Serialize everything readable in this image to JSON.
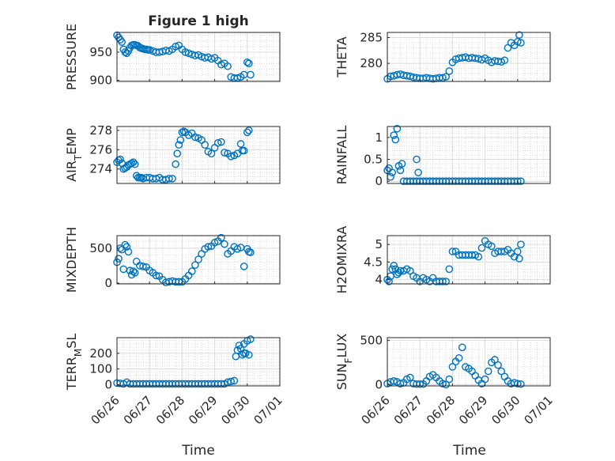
{
  "figure": {
    "title": "Figure 1 high",
    "xlabel": "Time",
    "x_ticks": [
      "06/26",
      "06/27",
      "06/28",
      "06/29",
      "06/30",
      "07/01"
    ],
    "marker_color": "#0072BD"
  },
  "chart_data": [
    {
      "type": "scatter",
      "ylabel": "PRESSURE",
      "title": "Figure 1 high",
      "ylim": [
        898,
        985
      ],
      "yticks": [
        900,
        950
      ],
      "x": [
        0.0,
        0.05,
        0.1,
        0.15,
        0.2,
        0.25,
        0.3,
        0.35,
        0.4,
        0.45,
        0.5,
        0.55,
        0.6,
        0.65,
        0.7,
        0.75,
        0.8,
        0.85,
        0.9,
        0.95,
        1.0,
        1.1,
        1.2,
        1.3,
        1.4,
        1.5,
        1.6,
        1.7,
        1.8,
        1.9,
        2.0,
        2.1,
        2.2,
        2.3,
        2.4,
        2.5,
        2.6,
        2.7,
        2.8,
        2.9,
        3.0,
        3.1,
        3.2,
        3.3,
        3.4,
        3.5,
        3.6,
        3.7,
        3.8,
        3.9,
        4.0,
        4.05,
        4.1
      ],
      "y": [
        980,
        976,
        972,
        968,
        955,
        950,
        948,
        952,
        958,
        962,
        963,
        963,
        962,
        961,
        958,
        957,
        956,
        955,
        955,
        954,
        954,
        952,
        950,
        950,
        951,
        953,
        952,
        955,
        960,
        962,
        955,
        950,
        948,
        946,
        944,
        945,
        942,
        940,
        941,
        938,
        940,
        935,
        928,
        930,
        925,
        906,
        904,
        904,
        906,
        910,
        932,
        930,
        910
      ]
    },
    {
      "type": "scatter",
      "ylabel": "THETA",
      "ylim": [
        276.5,
        286
      ],
      "yticks": [
        280,
        285
      ],
      "x": [
        0.0,
        0.1,
        0.2,
        0.3,
        0.4,
        0.5,
        0.6,
        0.7,
        0.8,
        0.9,
        1.0,
        1.1,
        1.2,
        1.3,
        1.4,
        1.5,
        1.6,
        1.7,
        1.8,
        1.9,
        2.0,
        2.1,
        2.2,
        2.3,
        2.4,
        2.5,
        2.6,
        2.7,
        2.8,
        2.9,
        3.0,
        3.1,
        3.2,
        3.3,
        3.4,
        3.5,
        3.6,
        3.7,
        3.8,
        3.9,
        4.0,
        4.05,
        4.1
      ],
      "y": [
        277.0,
        277.5,
        277.6,
        277.8,
        277.9,
        277.7,
        277.6,
        277.5,
        277.3,
        277.2,
        277.1,
        277.1,
        277.2,
        277.1,
        277.0,
        277.1,
        277.2,
        277.2,
        277.4,
        278.5,
        280.2,
        280.8,
        281.0,
        281.1,
        281.2,
        281.0,
        281.1,
        281.0,
        280.9,
        280.7,
        281.0,
        280.6,
        280.2,
        280.5,
        280.4,
        280.3,
        280.6,
        283.0,
        284.0,
        283.5,
        284.2,
        285.5,
        284.0
      ]
    },
    {
      "type": "scatter",
      "ylabel": "AIR_TEMP",
      "ylim": [
        272.5,
        278.4
      ],
      "yticks": [
        274,
        276,
        278
      ],
      "x": [
        0.0,
        0.05,
        0.1,
        0.15,
        0.2,
        0.25,
        0.3,
        0.35,
        0.4,
        0.45,
        0.5,
        0.55,
        0.6,
        0.65,
        0.7,
        0.75,
        0.8,
        0.9,
        1.0,
        1.1,
        1.2,
        1.3,
        1.4,
        1.5,
        1.6,
        1.7,
        1.8,
        1.85,
        1.9,
        1.95,
        2.0,
        2.05,
        2.1,
        2.2,
        2.3,
        2.4,
        2.5,
        2.6,
        2.7,
        2.8,
        2.9,
        3.0,
        3.1,
        3.2,
        3.3,
        3.4,
        3.5,
        3.6,
        3.7,
        3.8,
        3.85,
        3.9,
        4.0,
        4.05
      ],
      "y": [
        274.7,
        274.9,
        275.0,
        274.6,
        274.0,
        274.1,
        274.2,
        274.4,
        274.5,
        274.6,
        274.7,
        274.5,
        273.3,
        273.1,
        273.1,
        273.1,
        273.0,
        273.1,
        273.1,
        273.0,
        273.0,
        273.1,
        272.9,
        272.9,
        273.0,
        273.0,
        274.5,
        275.6,
        276.5,
        277.0,
        277.8,
        277.9,
        277.8,
        277.5,
        277.7,
        277.3,
        277.2,
        277.0,
        276.5,
        275.8,
        275.6,
        276.2,
        276.7,
        276.8,
        275.7,
        275.6,
        275.3,
        275.4,
        275.6,
        276.6,
        275.9,
        275.9,
        277.8,
        278.0
      ]
    },
    {
      "type": "scatter",
      "ylabel": "RAINFALL",
      "ylim": [
        -0.05,
        1.25
      ],
      "yticks": [
        0,
        0.5,
        1
      ],
      "x": [
        0.0,
        0.05,
        0.1,
        0.15,
        0.2,
        0.25,
        0.3,
        0.35,
        0.4,
        0.45,
        0.5,
        0.6,
        0.7,
        0.8,
        0.9,
        1.0,
        1.1,
        1.2,
        1.3,
        1.4,
        1.5,
        1.6,
        1.7,
        1.8,
        1.9,
        2.0,
        2.1,
        2.2,
        2.3,
        2.4,
        2.5,
        2.6,
        2.7,
        2.8,
        2.9,
        3.0,
        3.1,
        3.2,
        3.3,
        3.4,
        3.5,
        3.6,
        3.7,
        3.8,
        3.9,
        4.0,
        4.1,
        0.9,
        0.95
      ],
      "y": [
        0.25,
        0.3,
        0.1,
        0.2,
        1.05,
        0.95,
        1.2,
        0.35,
        0.25,
        0.4,
        0.0,
        0.0,
        0.0,
        0.0,
        0.0,
        0.0,
        0.0,
        0.0,
        0.0,
        0.0,
        0.0,
        0.0,
        0.0,
        0.0,
        0.0,
        0.0,
        0.0,
        0.0,
        0.0,
        0.0,
        0.0,
        0.0,
        0.0,
        0.0,
        0.0,
        0.0,
        0.0,
        0.0,
        0.0,
        0.0,
        0.0,
        0.0,
        0.0,
        0.0,
        0.0,
        0.0,
        0.0,
        0.5,
        0.2
      ]
    },
    {
      "type": "scatter",
      "ylabel": "MIXDEPTH",
      "ylim": [
        -10,
        680
      ],
      "yticks": [
        0,
        500
      ],
      "x": [
        0.0,
        0.05,
        0.1,
        0.15,
        0.2,
        0.25,
        0.3,
        0.35,
        0.4,
        0.45,
        0.5,
        0.55,
        0.6,
        0.7,
        0.8,
        0.9,
        1.0,
        1.1,
        1.2,
        1.3,
        1.4,
        1.5,
        1.6,
        1.7,
        1.8,
        1.9,
        2.0,
        2.1,
        2.2,
        2.3,
        2.4,
        2.5,
        2.6,
        2.7,
        2.8,
        2.9,
        3.0,
        3.1,
        3.2,
        3.3,
        3.4,
        3.5,
        3.6,
        3.7,
        3.8,
        3.9,
        4.0,
        4.05,
        4.1
      ],
      "y": [
        300,
        350,
        500,
        480,
        200,
        550,
        520,
        450,
        180,
        120,
        170,
        150,
        310,
        250,
        240,
        230,
        180,
        150,
        110,
        100,
        50,
        10,
        20,
        30,
        20,
        20,
        20,
        60,
        110,
        170,
        260,
        340,
        420,
        490,
        520,
        530,
        580,
        600,
        650,
        560,
        420,
        460,
        520,
        490,
        510,
        240,
        490,
        450,
        440
      ]
    },
    {
      "type": "scatter",
      "ylabel": "H2OMIXRA",
      "ylim": [
        3.88,
        5.25
      ],
      "yticks": [
        4,
        4.5,
        5
      ],
      "x": [
        0.0,
        0.05,
        0.1,
        0.15,
        0.2,
        0.25,
        0.3,
        0.35,
        0.4,
        0.5,
        0.6,
        0.7,
        0.8,
        0.9,
        1.0,
        1.1,
        1.2,
        1.3,
        1.4,
        1.5,
        1.6,
        1.7,
        1.8,
        1.9,
        2.0,
        2.1,
        2.2,
        2.3,
        2.4,
        2.5,
        2.6,
        2.7,
        2.8,
        2.9,
        3.0,
        3.1,
        3.2,
        3.3,
        3.4,
        3.5,
        3.6,
        3.7,
        3.8,
        3.9,
        4.0,
        4.05,
        4.1
      ],
      "y": [
        4.0,
        3.95,
        4.1,
        4.3,
        4.4,
        4.3,
        4.15,
        4.2,
        4.25,
        4.25,
        4.3,
        4.25,
        4.1,
        4.05,
        3.95,
        4.05,
        4.0,
        3.95,
        4.05,
        3.95,
        3.95,
        3.95,
        3.95,
        4.3,
        4.8,
        4.8,
        4.7,
        4.7,
        4.7,
        4.7,
        4.7,
        4.7,
        4.65,
        4.9,
        5.1,
        5.0,
        4.95,
        4.75,
        4.8,
        4.8,
        4.8,
        4.85,
        4.75,
        4.65,
        4.8,
        4.6,
        5.0
      ]
    },
    {
      "type": "scatter",
      "ylabel": "TERR_MSL",
      "ylim": [
        -8,
        300
      ],
      "yticks": [
        0,
        100,
        200
      ],
      "x": [
        0.0,
        0.1,
        0.2,
        0.3,
        0.4,
        0.5,
        0.6,
        0.7,
        0.8,
        0.9,
        1.0,
        1.1,
        1.2,
        1.3,
        1.4,
        1.5,
        1.6,
        1.7,
        1.8,
        1.9,
        2.0,
        2.1,
        2.2,
        2.3,
        2.4,
        2.5,
        2.6,
        2.7,
        2.8,
        2.9,
        3.0,
        3.1,
        3.2,
        3.3,
        3.4,
        3.5,
        3.6,
        3.65,
        3.7,
        3.75,
        3.8,
        3.85,
        3.9,
        3.95,
        4.0,
        4.05,
        4.1,
        3.9
      ],
      "y": [
        10,
        8,
        5,
        15,
        5,
        5,
        5,
        5,
        5,
        5,
        5,
        5,
        5,
        5,
        5,
        5,
        5,
        5,
        5,
        5,
        5,
        5,
        5,
        5,
        5,
        5,
        5,
        5,
        5,
        5,
        5,
        5,
        5,
        5,
        15,
        20,
        25,
        180,
        220,
        250,
        230,
        190,
        260,
        200,
        280,
        190,
        290,
        200
      ]
    },
    {
      "type": "scatter",
      "ylabel": "SUN_FLUX",
      "ylim": [
        -15,
        530
      ],
      "yticks": [
        0,
        500
      ],
      "x": [
        0.0,
        0.1,
        0.2,
        0.3,
        0.4,
        0.5,
        0.6,
        0.7,
        0.8,
        0.9,
        1.0,
        1.1,
        1.2,
        1.3,
        1.4,
        1.5,
        1.6,
        1.7,
        1.8,
        1.9,
        2.0,
        2.1,
        2.2,
        2.3,
        2.4,
        2.5,
        2.6,
        2.7,
        2.8,
        2.9,
        3.0,
        3.1,
        3.2,
        3.3,
        3.4,
        3.5,
        3.6,
        3.7,
        3.8,
        3.9,
        4.0,
        4.1
      ],
      "y": [
        10,
        30,
        40,
        30,
        10,
        20,
        60,
        80,
        10,
        5,
        5,
        5,
        40,
        90,
        110,
        80,
        40,
        10,
        0,
        60,
        200,
        260,
        300,
        420,
        200,
        180,
        150,
        100,
        50,
        10,
        60,
        150,
        250,
        280,
        220,
        150,
        90,
        40,
        10,
        20,
        10,
        5
      ]
    }
  ]
}
